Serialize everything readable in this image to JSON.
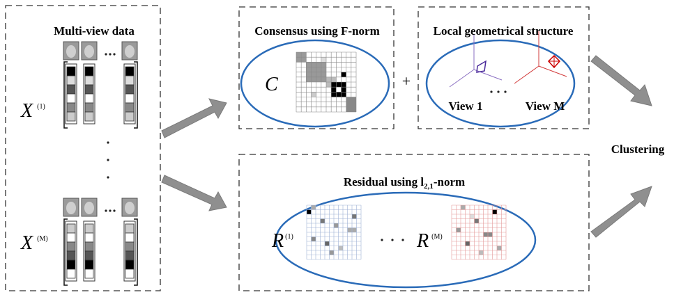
{
  "multiview": {
    "title": "Multi-view data",
    "views": [
      {
        "symbol": "X",
        "superscript": "(1)"
      },
      {
        "symbol": "X",
        "superscript": "(M)"
      }
    ]
  },
  "consensus": {
    "title": "Consensus using F-norm",
    "symbol": "C"
  },
  "plus": "+",
  "local": {
    "title": "Local geometrical structure",
    "views": [
      "View 1",
      "View M"
    ]
  },
  "residual": {
    "title": {
      "text": "Residual using l",
      "subscript": "2,1",
      "suffix": "-norm"
    },
    "matrices": [
      {
        "symbol": "R",
        "superscript": "(1)"
      },
      {
        "symbol": "R",
        "superscript": "(M)"
      }
    ]
  },
  "output": "Clustering"
}
